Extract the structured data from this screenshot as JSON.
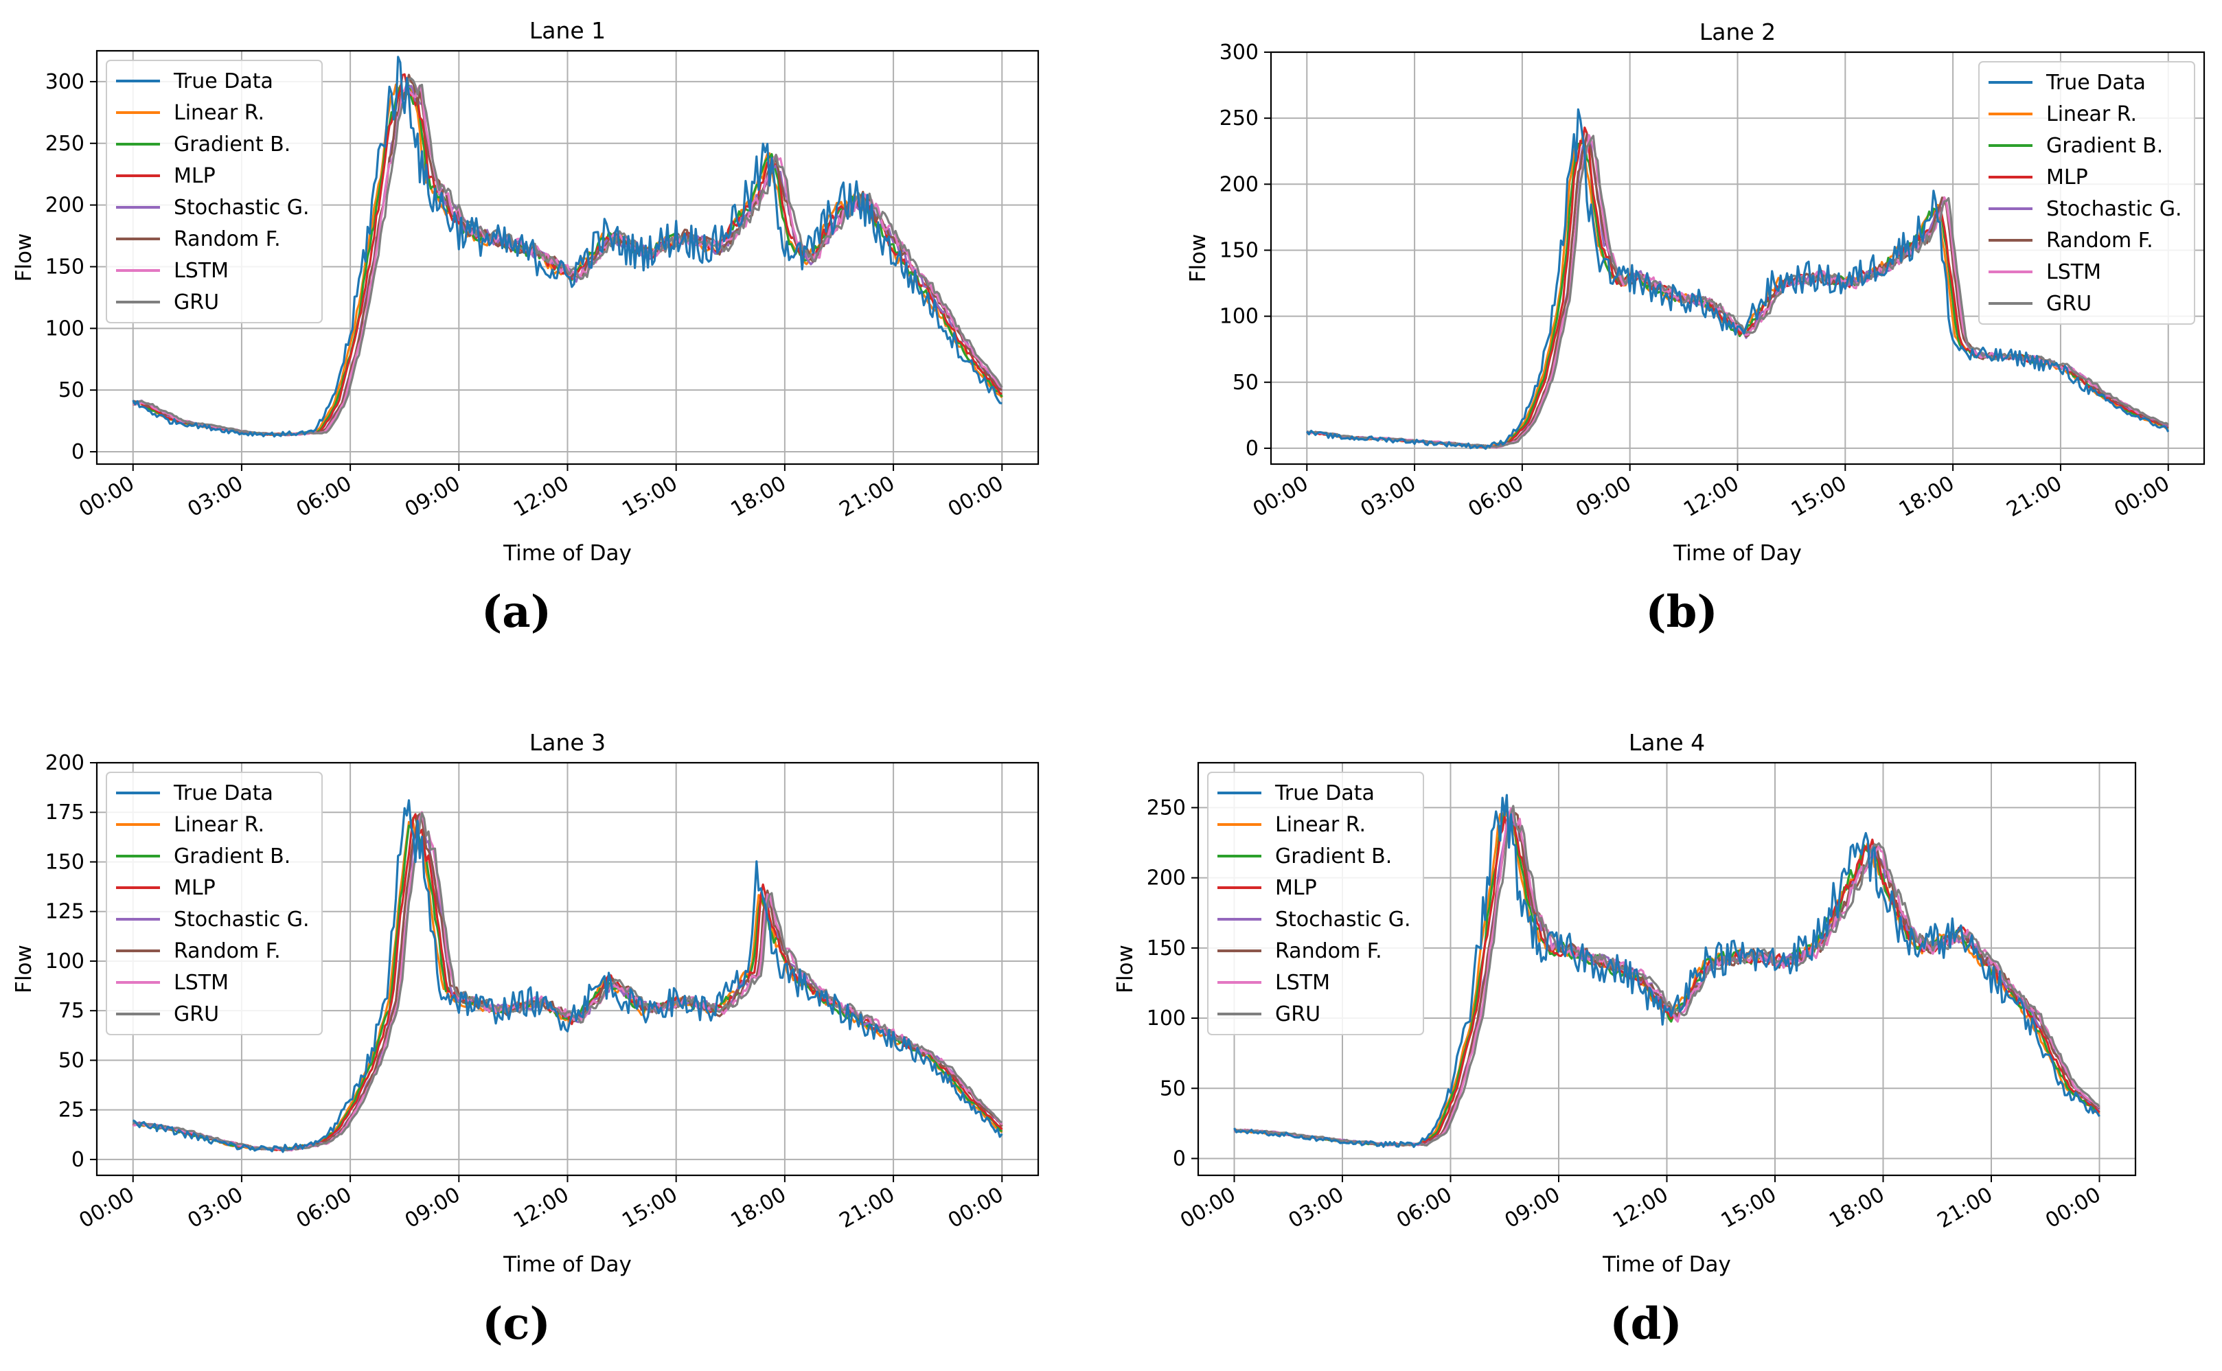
{
  "figure": {
    "captions": [
      "(a)",
      "(b)",
      "(c)",
      "(d)"
    ]
  },
  "legend_entries": [
    {
      "name": "True Data",
      "color": "#1f77b4"
    },
    {
      "name": "Linear R.",
      "color": "#ff7f0e"
    },
    {
      "name": "Gradient B.",
      "color": "#2ca02c"
    },
    {
      "name": "MLP",
      "color": "#d62728"
    },
    {
      "name": "Stochastic G.",
      "color": "#9467bd"
    },
    {
      "name": "Random F.",
      "color": "#8c564b"
    },
    {
      "name": "LSTM",
      "color": "#e377c2"
    },
    {
      "name": "GRU",
      "color": "#7f7f7f"
    }
  ],
  "chart_data": [
    {
      "type": "line",
      "title": "Lane 1",
      "xlabel": "Time of Day",
      "ylabel": "Flow",
      "xlim": [
        -1,
        25
      ],
      "ylim": [
        -10,
        325
      ],
      "yticks": [
        0,
        50,
        100,
        150,
        200,
        250,
        300
      ],
      "xticks": [
        "00:00",
        "03:00",
        "06:00",
        "09:00",
        "12:00",
        "15:00",
        "18:00",
        "21:00",
        "00:00"
      ],
      "legend_position": "upper left",
      "grid": true,
      "x": [
        0,
        1,
        2,
        3,
        4,
        5,
        5.5,
        6,
        6.5,
        7,
        7.3,
        7.7,
        8,
        8.5,
        9,
        10,
        11,
        12,
        13,
        14,
        15,
        16,
        17,
        17.5,
        18,
        18.5,
        19,
        19.5,
        20,
        21,
        22,
        23,
        24
      ],
      "true_data": [
        40,
        25,
        20,
        15,
        14,
        16,
        40,
        95,
        180,
        275,
        300,
        285,
        220,
        200,
        180,
        170,
        160,
        140,
        175,
        160,
        175,
        165,
        205,
        240,
        170,
        155,
        180,
        200,
        205,
        160,
        120,
        75,
        40
      ]
    },
    {
      "type": "line",
      "title": "Lane 2",
      "xlabel": "Time of Day",
      "ylabel": "Flow",
      "xlim": [
        -1,
        25
      ],
      "ylim": [
        -12,
        300
      ],
      "yticks": [
        0,
        50,
        100,
        150,
        200,
        250,
        300
      ],
      "xticks": [
        "00:00",
        "03:00",
        "06:00",
        "09:00",
        "12:00",
        "15:00",
        "18:00",
        "21:00",
        "00:00"
      ],
      "legend_position": "upper right",
      "grid": true,
      "x": [
        0,
        1,
        2,
        3,
        4,
        5,
        5.5,
        6,
        6.5,
        7,
        7.3,
        7.6,
        8,
        8.5,
        9,
        10,
        11,
        12,
        13,
        14,
        15,
        16,
        17,
        17.5,
        18,
        18.5,
        19,
        20,
        21,
        22,
        23,
        24
      ],
      "true_data": [
        12,
        8,
        7,
        5,
        3,
        1,
        5,
        20,
        55,
        120,
        215,
        240,
        155,
        125,
        130,
        115,
        110,
        85,
        125,
        130,
        125,
        140,
        160,
        190,
        80,
        70,
        70,
        68,
        60,
        40,
        25,
        14
      ]
    },
    {
      "type": "line",
      "title": "Lane 3",
      "xlabel": "Time of Day",
      "ylabel": "Flow",
      "xlim": [
        -1,
        25
      ],
      "ylim": [
        -8,
        200
      ],
      "yticks": [
        0,
        25,
        50,
        75,
        100,
        125,
        150,
        175,
        200
      ],
      "xticks": [
        "00:00",
        "03:00",
        "06:00",
        "09:00",
        "12:00",
        "15:00",
        "18:00",
        "21:00",
        "00:00"
      ],
      "legend_position": "upper left",
      "grid": true,
      "x": [
        0,
        1,
        2,
        3,
        4,
        5,
        5.5,
        6,
        6.5,
        7,
        7.3,
        7.6,
        8,
        8.5,
        9,
        10,
        11,
        12,
        13,
        14,
        15,
        16,
        17,
        17.2,
        17.5,
        18,
        19,
        20,
        21,
        22,
        23,
        24
      ],
      "true_data": [
        18,
        15,
        10,
        6,
        5,
        8,
        15,
        30,
        50,
        80,
        140,
        175,
        150,
        85,
        80,
        75,
        80,
        70,
        90,
        75,
        80,
        75,
        95,
        140,
        115,
        95,
        80,
        70,
        60,
        50,
        30,
        12
      ]
    },
    {
      "type": "line",
      "title": "Lane 4",
      "xlabel": "Time of Day",
      "ylabel": "Flow",
      "xlim": [
        -1,
        25
      ],
      "ylim": [
        -12,
        282
      ],
      "yticks": [
        0,
        50,
        100,
        150,
        200,
        250
      ],
      "xticks": [
        "00:00",
        "03:00",
        "06:00",
        "09:00",
        "12:00",
        "15:00",
        "18:00",
        "21:00",
        "00:00"
      ],
      "legend_position": "upper left",
      "grid": true,
      "x": [
        0,
        1,
        2,
        3,
        4,
        5,
        5.5,
        6,
        6.5,
        7,
        7.3,
        7.6,
        8,
        8.5,
        9,
        10,
        11,
        12,
        13,
        14,
        15,
        16,
        17,
        17.5,
        18,
        18.5,
        19,
        20,
        21,
        22,
        23,
        24
      ],
      "true_data": [
        20,
        18,
        15,
        12,
        10,
        10,
        18,
        50,
        100,
        190,
        245,
        240,
        180,
        150,
        150,
        140,
        130,
        100,
        140,
        145,
        140,
        150,
        200,
        225,
        190,
        160,
        150,
        160,
        130,
        100,
        50,
        30
      ]
    }
  ]
}
